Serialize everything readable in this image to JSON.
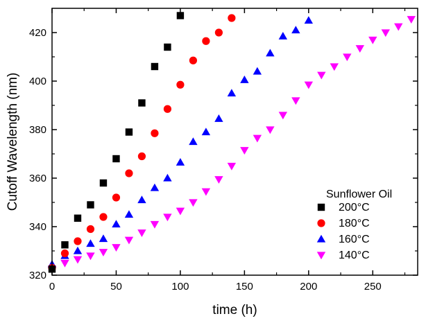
{
  "chart_data": {
    "type": "scatter",
    "title": "",
    "xlabel": "time (h)",
    "ylabel": "Cutoff Wavelength (nm)",
    "xlim": [
      0,
      285
    ],
    "ylim": [
      320,
      430
    ],
    "xticks": [
      0,
      50,
      100,
      150,
      200,
      250
    ],
    "yticks": [
      320,
      340,
      360,
      380,
      400,
      420
    ],
    "legend": {
      "title": "Sunflower Oil",
      "position": "bottom-right"
    },
    "series": [
      {
        "name": "200°C",
        "marker": "square",
        "color": "#000000",
        "x": [
          0,
          10,
          20,
          30,
          40,
          50,
          60,
          70,
          80,
          90,
          100
        ],
        "y": [
          322.5,
          332.5,
          343.5,
          349,
          358,
          368,
          379,
          391,
          406,
          414,
          427
        ]
      },
      {
        "name": "180°C",
        "marker": "circle",
        "color": "#ff0000",
        "x": [
          0,
          10,
          20,
          30,
          40,
          50,
          60,
          70,
          80,
          90,
          100,
          110,
          120,
          130,
          140
        ],
        "y": [
          323,
          329,
          334,
          339,
          344,
          352,
          362,
          369,
          378.5,
          388.5,
          398.5,
          408.5,
          416.5,
          420,
          426
        ]
      },
      {
        "name": "160°C",
        "marker": "triangle-up",
        "color": "#0000ff",
        "x": [
          0,
          10,
          20,
          30,
          40,
          50,
          60,
          70,
          80,
          90,
          100,
          110,
          120,
          130,
          140,
          150,
          160,
          170,
          180,
          190,
          200
        ],
        "y": [
          324.5,
          328,
          330,
          333,
          335,
          341,
          345,
          351,
          356,
          360,
          366.5,
          375,
          379,
          384.5,
          395,
          400.5,
          404,
          411.5,
          418.5,
          421,
          425
        ]
      },
      {
        "name": "140°C",
        "marker": "triangle-down",
        "color": "#ff00ff",
        "x": [
          0,
          10,
          20,
          30,
          40,
          50,
          60,
          70,
          80,
          90,
          100,
          110,
          120,
          130,
          140,
          150,
          160,
          170,
          180,
          190,
          200,
          210,
          220,
          230,
          240,
          250,
          260,
          270,
          280
        ],
        "y": [
          322.5,
          325,
          326.5,
          328,
          329.5,
          331.5,
          334.5,
          337.5,
          341,
          344,
          346.5,
          350,
          354.5,
          359.5,
          365,
          371.5,
          376.5,
          380,
          386,
          392,
          398.5,
          402.5,
          406,
          410,
          413.5,
          417,
          420,
          422.5,
          425.5
        ]
      }
    ]
  }
}
